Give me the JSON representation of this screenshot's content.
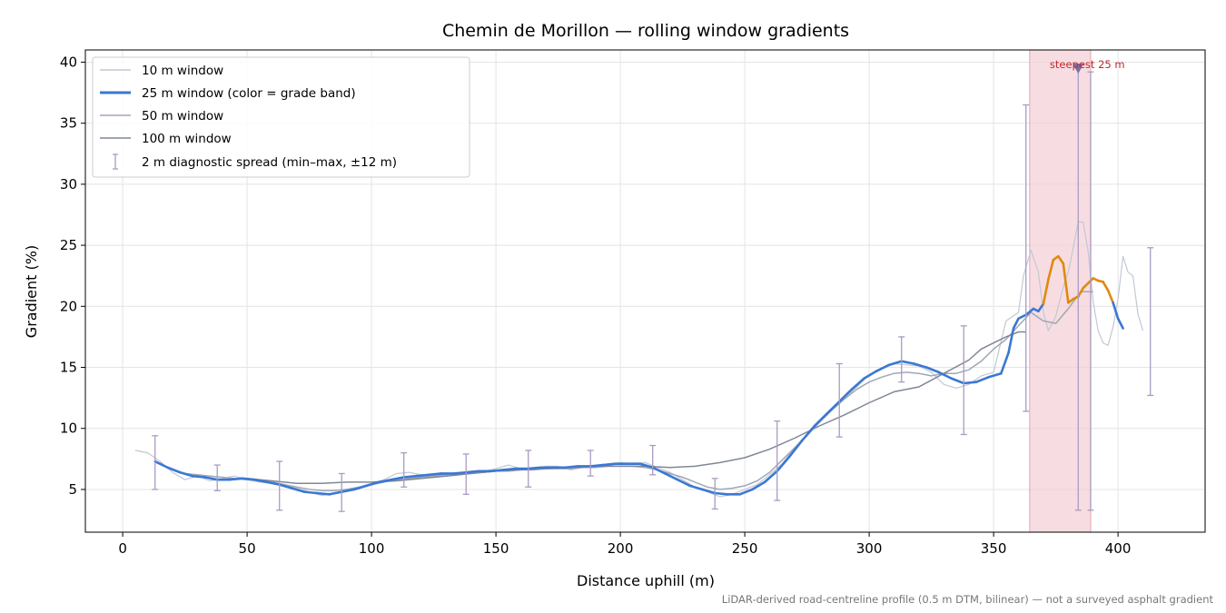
{
  "chart_data": {
    "type": "line",
    "title": "Chemin de Morillon — rolling window gradients",
    "xlabel": "Distance uphill (m)",
    "ylabel": "Gradient (%)",
    "xlim": [
      -15,
      435
    ],
    "ylim": [
      1.5,
      41
    ],
    "xticks": [
      0,
      50,
      100,
      150,
      200,
      250,
      300,
      350,
      400
    ],
    "yticks": [
      5,
      10,
      15,
      20,
      25,
      30,
      35,
      40
    ],
    "grid": true,
    "legend_position": "top-left",
    "footnote": "LiDAR-derived road-centreline profile (0.5 m DTM, bilinear) — not a surveyed asphalt gradient",
    "grade_band_colors": {
      "below_20": "#3a78d4",
      "20_to_25": "#e08a0b"
    },
    "highlight": {
      "label": "steepest 25 m",
      "x_range": [
        364.5,
        389
      ],
      "marker_x": 384,
      "marker_y": 39.5,
      "color": "#f4cfd5",
      "label_color": "#c0282d"
    },
    "series": [
      {
        "name": "10 m window",
        "color": "#c2c8d2",
        "width": 1.2,
        "x": [
          5,
          10,
          15,
          20,
          25,
          30,
          35,
          40,
          45,
          50,
          55,
          60,
          65,
          70,
          75,
          80,
          85,
          90,
          95,
          100,
          105,
          110,
          115,
          120,
          125,
          130,
          135,
          140,
          145,
          150,
          155,
          160,
          165,
          170,
          175,
          180,
          185,
          190,
          195,
          200,
          205,
          210,
          215,
          220,
          225,
          230,
          235,
          240,
          245,
          250,
          255,
          260,
          265,
          270,
          275,
          280,
          285,
          290,
          295,
          300,
          305,
          310,
          315,
          320,
          325,
          330,
          335,
          340,
          345,
          350,
          355,
          360,
          362,
          365,
          368,
          370,
          372,
          375,
          378,
          380,
          382,
          384,
          386,
          388,
          390,
          392,
          394,
          396,
          398,
          400,
          402,
          404,
          406,
          408,
          410
        ],
        "y": [
          8.2,
          8,
          7.3,
          6.4,
          5.8,
          6.1,
          5.7,
          5.9,
          6.1,
          5.8,
          5.6,
          5.5,
          5.3,
          5.1,
          4.8,
          4.5,
          4.7,
          4.9,
          5.2,
          5.5,
          5.8,
          6.3,
          6.4,
          6.2,
          6,
          6.3,
          6.2,
          6.5,
          6.5,
          6.7,
          7,
          6.7,
          6.6,
          6.9,
          6.9,
          6.6,
          6.8,
          6.9,
          7,
          7.2,
          7.1,
          7.2,
          6.8,
          6.4,
          5.8,
          5.2,
          4.8,
          4.4,
          4.6,
          5,
          5.4,
          6.2,
          7.1,
          8.4,
          9.5,
          10.6,
          11.5,
          12.4,
          13.4,
          14.4,
          14.9,
          15.3,
          15.2,
          15.1,
          14.6,
          13.6,
          13.3,
          13.6,
          14.3,
          14.6,
          18.8,
          19.5,
          22.5,
          24.6,
          22.8,
          19.5,
          18,
          19.2,
          21.6,
          22.8,
          24.8,
          26.9,
          26.9,
          24.5,
          20.4,
          18,
          17,
          16.8,
          18.3,
          20.6,
          24.1,
          22.8,
          22.5,
          19.4,
          18
        ]
      },
      {
        "name": "25 m window (color = grade band)",
        "color": "#3a78d4",
        "width": 2.6,
        "x": [
          13,
          18,
          23,
          28,
          33,
          38,
          43,
          48,
          53,
          58,
          63,
          68,
          73,
          78,
          83,
          88,
          93,
          98,
          103,
          108,
          113,
          118,
          123,
          128,
          133,
          138,
          143,
          148,
          153,
          158,
          163,
          168,
          173,
          178,
          183,
          188,
          193,
          198,
          203,
          208,
          213,
          218,
          223,
          228,
          233,
          238,
          243,
          248,
          253,
          258,
          263,
          268,
          273,
          278,
          283,
          288,
          293,
          298,
          303,
          308,
          313,
          318,
          323,
          328,
          333,
          338,
          343,
          348,
          353,
          356,
          358,
          360,
          363,
          366,
          368,
          370,
          372,
          374,
          376,
          378,
          380,
          382,
          384,
          386,
          388,
          390,
          392,
          394,
          396,
          398,
          400,
          402
        ],
        "y": [
          7.3,
          6.8,
          6.4,
          6.1,
          6,
          5.8,
          5.8,
          5.9,
          5.8,
          5.6,
          5.4,
          5.1,
          4.8,
          4.7,
          4.6,
          4.8,
          5,
          5.3,
          5.6,
          5.8,
          6,
          6.1,
          6.2,
          6.3,
          6.3,
          6.4,
          6.5,
          6.5,
          6.6,
          6.7,
          6.7,
          6.8,
          6.8,
          6.8,
          6.9,
          6.9,
          7,
          7.1,
          7.1,
          7.1,
          6.8,
          6.3,
          5.8,
          5.3,
          5,
          4.7,
          4.6,
          4.6,
          5,
          5.6,
          6.5,
          7.7,
          9,
          10.2,
          11.2,
          12.2,
          13.2,
          14.1,
          14.7,
          15.2,
          15.5,
          15.3,
          15,
          14.6,
          14.1,
          13.7,
          13.8,
          14.2,
          14.5,
          16.2,
          18.2,
          19,
          19.3,
          19.8,
          19.6,
          20.2,
          22.2,
          23.8,
          24.1,
          23.5,
          20.3,
          20.6,
          20.8,
          21.5,
          21.9,
          22.3,
          22.1,
          22,
          21.3,
          20.3,
          19,
          18.2
        ]
      },
      {
        "name": "50 m window",
        "color": "#a0a7b5",
        "width": 1.5,
        "x": [
          25,
          30,
          35,
          40,
          45,
          50,
          55,
          60,
          65,
          70,
          75,
          80,
          85,
          90,
          95,
          100,
          105,
          110,
          115,
          120,
          125,
          130,
          135,
          140,
          145,
          150,
          155,
          160,
          165,
          170,
          175,
          180,
          185,
          190,
          195,
          200,
          205,
          210,
          215,
          220,
          225,
          230,
          235,
          240,
          245,
          250,
          255,
          260,
          265,
          270,
          275,
          280,
          285,
          290,
          295,
          300,
          305,
          310,
          315,
          320,
          325,
          330,
          335,
          340,
          345,
          350,
          355,
          360,
          365,
          370,
          375,
          380,
          385,
          390
        ],
        "y": [
          6.3,
          6.2,
          6.1,
          6,
          5.9,
          5.8,
          5.7,
          5.6,
          5.4,
          5.2,
          5,
          4.9,
          4.9,
          5,
          5.2,
          5.4,
          5.6,
          5.8,
          5.9,
          6,
          6.1,
          6.2,
          6.3,
          6.4,
          6.4,
          6.5,
          6.5,
          6.6,
          6.6,
          6.7,
          6.7,
          6.7,
          6.8,
          6.8,
          6.9,
          6.9,
          6.9,
          6.8,
          6.6,
          6.3,
          6,
          5.6,
          5.2,
          5,
          5.1,
          5.3,
          5.7,
          6.4,
          7.4,
          8.4,
          9.4,
          10.5,
          11.5,
          12.4,
          13.2,
          13.8,
          14.2,
          14.5,
          14.6,
          14.5,
          14.3,
          14.5,
          14.5,
          14.8,
          15.5,
          16.5,
          17.3,
          18.4,
          19.5,
          18.8,
          18.6,
          19.8,
          21.2,
          21.2
        ]
      },
      {
        "name": "100 m window",
        "color": "#7f8796",
        "width": 1.5,
        "x": [
          50,
          60,
          70,
          80,
          90,
          100,
          110,
          120,
          130,
          140,
          150,
          160,
          170,
          180,
          190,
          200,
          210,
          220,
          230,
          240,
          250,
          260,
          270,
          280,
          290,
          300,
          310,
          320,
          330,
          340,
          345,
          350,
          355,
          360,
          363
        ],
        "y": [
          5.9,
          5.7,
          5.5,
          5.5,
          5.6,
          5.6,
          5.7,
          5.9,
          6.1,
          6.3,
          6.5,
          6.6,
          6.7,
          6.8,
          6.9,
          6.9,
          6.9,
          6.8,
          6.9,
          7.2,
          7.6,
          8.3,
          9.2,
          10.2,
          11.1,
          12.1,
          13,
          13.4,
          14.5,
          15.6,
          16.5,
          17,
          17.5,
          17.9,
          17.9
        ]
      }
    ],
    "diagnostic_spread": {
      "name": "2 m diagnostic spread (min–max, ±12 m)",
      "color": "#a99bc2",
      "x": [
        13,
        38,
        63,
        88,
        113,
        138,
        163,
        188,
        213,
        238,
        263,
        288,
        313,
        338,
        363,
        384,
        389,
        413
      ],
      "min": [
        5,
        4.9,
        3.3,
        3.2,
        5.2,
        4.6,
        5.2,
        6.1,
        6.2,
        3.4,
        4.1,
        9.3,
        13.8,
        9.5,
        11.4,
        3.3,
        3.3,
        12.7
      ],
      "max": [
        9.4,
        7,
        7.3,
        6.3,
        8,
        7.9,
        8.2,
        8.2,
        8.6,
        5.9,
        10.6,
        15.3,
        17.5,
        18.4,
        36.5,
        39.5,
        39.2,
        24.8
      ]
    }
  }
}
